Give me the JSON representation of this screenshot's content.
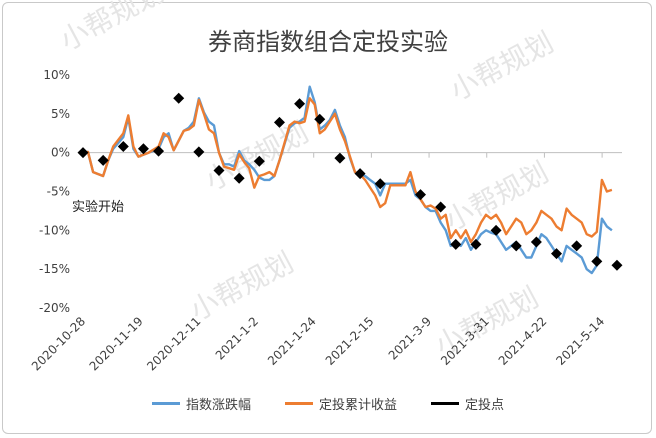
{
  "watermark": "小帮规划",
  "chart_data": {
    "type": "line",
    "title": "券商指数组合定投实验",
    "ylim": [
      -20,
      10
    ],
    "y_ticks": [
      "10%",
      "5%",
      "0%",
      "-5%",
      "-10%",
      "-15%",
      "-20%"
    ],
    "y_tick_values": [
      10,
      5,
      0,
      -5,
      -10,
      -15,
      -20
    ],
    "x_ticks": [
      "2020-10-28",
      "2020-11-19",
      "2020-12-11",
      "2021-1-2",
      "2021-1-24",
      "2021-2-15",
      "2021-3-9",
      "2021-3-31",
      "2021-4-22",
      "2021-5-14"
    ],
    "annotation": "实验开始",
    "grid": "none",
    "legend_position": "bottom",
    "series": [
      {
        "name": "指数涨跌幅",
        "color": "#5b9bd5",
        "points": [
          [
            0,
            0
          ],
          [
            1,
            0.1
          ],
          [
            2,
            -2.5
          ],
          [
            4,
            -3.0
          ],
          [
            5,
            -1.0
          ],
          [
            6,
            0.5
          ],
          [
            8,
            2.0
          ],
          [
            9,
            4.5
          ],
          [
            10,
            0.5
          ],
          [
            11,
            -0.5
          ],
          [
            13,
            0
          ],
          [
            15,
            0.5
          ],
          [
            16,
            2.0
          ],
          [
            17,
            2.5
          ],
          [
            18,
            0.3
          ],
          [
            20,
            2.8
          ],
          [
            21,
            3.2
          ],
          [
            22,
            4.0
          ],
          [
            23,
            7.0
          ],
          [
            24,
            5.2
          ],
          [
            25,
            4.0
          ],
          [
            26,
            3.5
          ],
          [
            27,
            0
          ],
          [
            28,
            -1.5
          ],
          [
            29,
            -1.5
          ],
          [
            30,
            -1.8
          ],
          [
            31,
            0.2
          ],
          [
            32,
            -1.0
          ],
          [
            33,
            -1.5
          ],
          [
            34,
            -2.2
          ],
          [
            35,
            -3.2
          ],
          [
            36,
            -3.5
          ],
          [
            37,
            -3.5
          ],
          [
            38,
            -3.0
          ],
          [
            39,
            -1.0
          ],
          [
            41,
            3.2
          ],
          [
            42,
            3.8
          ],
          [
            43,
            4.0
          ],
          [
            44,
            4.5
          ],
          [
            45,
            8.5
          ],
          [
            46,
            6.5
          ],
          [
            47,
            3.0
          ],
          [
            48,
            3.5
          ],
          [
            49,
            4.2
          ],
          [
            50,
            5.5
          ],
          [
            51,
            3.5
          ],
          [
            52,
            2.0
          ],
          [
            53,
            -0.7
          ],
          [
            54,
            -2.5
          ],
          [
            55,
            -2.8
          ],
          [
            56,
            -3.0
          ],
          [
            57,
            -3.5
          ],
          [
            58,
            -4.0
          ],
          [
            59,
            -5.5
          ],
          [
            60,
            -4.0
          ],
          [
            61,
            -4.0
          ],
          [
            62,
            -4.0
          ],
          [
            63,
            -4.0
          ],
          [
            64,
            -4.0
          ],
          [
            65,
            -3.5
          ],
          [
            66,
            -5.5
          ],
          [
            67,
            -6.0
          ],
          [
            68,
            -7.0
          ],
          [
            69,
            -7.5
          ],
          [
            70,
            -7.5
          ],
          [
            71,
            -9.0
          ],
          [
            72,
            -10.0
          ],
          [
            73,
            -12.0
          ],
          [
            74,
            -11.5
          ],
          [
            75,
            -12.0
          ],
          [
            76,
            -11.0
          ],
          [
            77,
            -12.5
          ],
          [
            78,
            -11.5
          ],
          [
            79,
            -10.5
          ],
          [
            80,
            -10.0
          ],
          [
            81,
            -10.3
          ],
          [
            82,
            -10.5
          ],
          [
            83,
            -11.5
          ],
          [
            84,
            -12.5
          ],
          [
            85,
            -12.0
          ],
          [
            86,
            -11.5
          ],
          [
            87,
            -12.5
          ],
          [
            88,
            -13.5
          ],
          [
            89,
            -13.5
          ],
          [
            90,
            -12.0
          ],
          [
            91,
            -10.5
          ],
          [
            92,
            -11.0
          ],
          [
            93,
            -12.0
          ],
          [
            94,
            -13.0
          ],
          [
            95,
            -14.0
          ],
          [
            96,
            -12.0
          ],
          [
            97,
            -12.5
          ],
          [
            98,
            -13.0
          ],
          [
            99,
            -13.5
          ],
          [
            100,
            -15.0
          ],
          [
            101,
            -15.5
          ],
          [
            102,
            -14.5
          ],
          [
            103,
            -8.5
          ],
          [
            104,
            -9.5
          ],
          [
            105,
            -10.0
          ]
        ]
      },
      {
        "name": "定投累计收益",
        "color": "#ed7d31",
        "points": [
          [
            0,
            0
          ],
          [
            1,
            0.1
          ],
          [
            2,
            -2.5
          ],
          [
            4,
            -3.0
          ],
          [
            5,
            -1.0
          ],
          [
            6,
            0.8
          ],
          [
            8,
            2.5
          ],
          [
            9,
            4.8
          ],
          [
            10,
            0.8
          ],
          [
            11,
            -0.5
          ],
          [
            13,
            0
          ],
          [
            15,
            0.8
          ],
          [
            16,
            2.5
          ],
          [
            17,
            2.0
          ],
          [
            18,
            0.3
          ],
          [
            20,
            2.8
          ],
          [
            21,
            3.0
          ],
          [
            22,
            3.5
          ],
          [
            23,
            6.8
          ],
          [
            24,
            5.0
          ],
          [
            25,
            3.0
          ],
          [
            26,
            2.5
          ],
          [
            27,
            0
          ],
          [
            28,
            -1.8
          ],
          [
            29,
            -2.0
          ],
          [
            30,
            -2.2
          ],
          [
            31,
            -0.2
          ],
          [
            32,
            -1.2
          ],
          [
            33,
            -2.0
          ],
          [
            34,
            -4.5
          ],
          [
            35,
            -3.0
          ],
          [
            36,
            -2.8
          ],
          [
            37,
            -2.5
          ],
          [
            38,
            -3.0
          ],
          [
            39,
            -1.0
          ],
          [
            41,
            3.5
          ],
          [
            42,
            4.0
          ],
          [
            43,
            3.8
          ],
          [
            44,
            4.0
          ],
          [
            45,
            7.0
          ],
          [
            46,
            6.2
          ],
          [
            47,
            2.5
          ],
          [
            48,
            3.0
          ],
          [
            49,
            4.0
          ],
          [
            50,
            5.0
          ],
          [
            51,
            3.0
          ],
          [
            52,
            1.5
          ],
          [
            53,
            -0.5
          ],
          [
            54,
            -2.5
          ],
          [
            55,
            -2.8
          ],
          [
            56,
            -3.5
          ],
          [
            57,
            -4.5
          ],
          [
            58,
            -5.5
          ],
          [
            59,
            -7.0
          ],
          [
            60,
            -6.5
          ],
          [
            61,
            -4.2
          ],
          [
            62,
            -4.2
          ],
          [
            63,
            -4.2
          ],
          [
            64,
            -4.2
          ],
          [
            65,
            -2.5
          ],
          [
            66,
            -5.0
          ],
          [
            67,
            -6.0
          ],
          [
            68,
            -7.0
          ],
          [
            69,
            -6.8
          ],
          [
            70,
            -7.2
          ],
          [
            71,
            -8.5
          ],
          [
            72,
            -8.0
          ],
          [
            73,
            -11.0
          ],
          [
            74,
            -10.0
          ],
          [
            75,
            -11.0
          ],
          [
            76,
            -10.0
          ],
          [
            77,
            -11.5
          ],
          [
            78,
            -10.5
          ],
          [
            79,
            -9.0
          ],
          [
            80,
            -8.0
          ],
          [
            81,
            -8.5
          ],
          [
            82,
            -8.0
          ],
          [
            83,
            -9.0
          ],
          [
            84,
            -10.5
          ],
          [
            85,
            -9.5
          ],
          [
            86,
            -8.5
          ],
          [
            87,
            -9.0
          ],
          [
            88,
            -10.5
          ],
          [
            89,
            -10.0
          ],
          [
            90,
            -9.0
          ],
          [
            91,
            -7.5
          ],
          [
            92,
            -8.0
          ],
          [
            93,
            -8.5
          ],
          [
            94,
            -9.5
          ],
          [
            95,
            -10.0
          ],
          [
            96,
            -7.2
          ],
          [
            97,
            -8.0
          ],
          [
            98,
            -8.5
          ],
          [
            99,
            -9.0
          ],
          [
            100,
            -10.5
          ],
          [
            101,
            -10.8
          ],
          [
            102,
            -10.2
          ],
          [
            103,
            -3.5
          ],
          [
            104,
            -5.0
          ],
          [
            105,
            -4.8
          ]
        ]
      },
      {
        "name": "定投点",
        "color": "#000000",
        "points": [
          [
            0,
            0
          ],
          [
            4,
            -1.0
          ],
          [
            8,
            0.8
          ],
          [
            12,
            0.5
          ],
          [
            15,
            0.2
          ],
          [
            19,
            7.0
          ],
          [
            23,
            0.1
          ],
          [
            27,
            -2.3
          ],
          [
            31,
            -3.3
          ],
          [
            35,
            -1.1
          ],
          [
            39,
            3.9
          ],
          [
            43,
            6.3
          ],
          [
            47,
            4.3
          ],
          [
            51,
            -0.7
          ],
          [
            55,
            -2.7
          ],
          [
            59,
            -4.0
          ],
          [
            67,
            -5.4
          ],
          [
            71,
            -7.0
          ],
          [
            74,
            -11.8
          ],
          [
            78,
            -11.8
          ],
          [
            82,
            -10.0
          ],
          [
            86,
            -12.0
          ],
          [
            90,
            -11.5
          ],
          [
            94,
            -13.0
          ],
          [
            98,
            -12.0
          ],
          [
            102,
            -14.0
          ],
          [
            106,
            -14.5
          ]
        ]
      }
    ]
  }
}
